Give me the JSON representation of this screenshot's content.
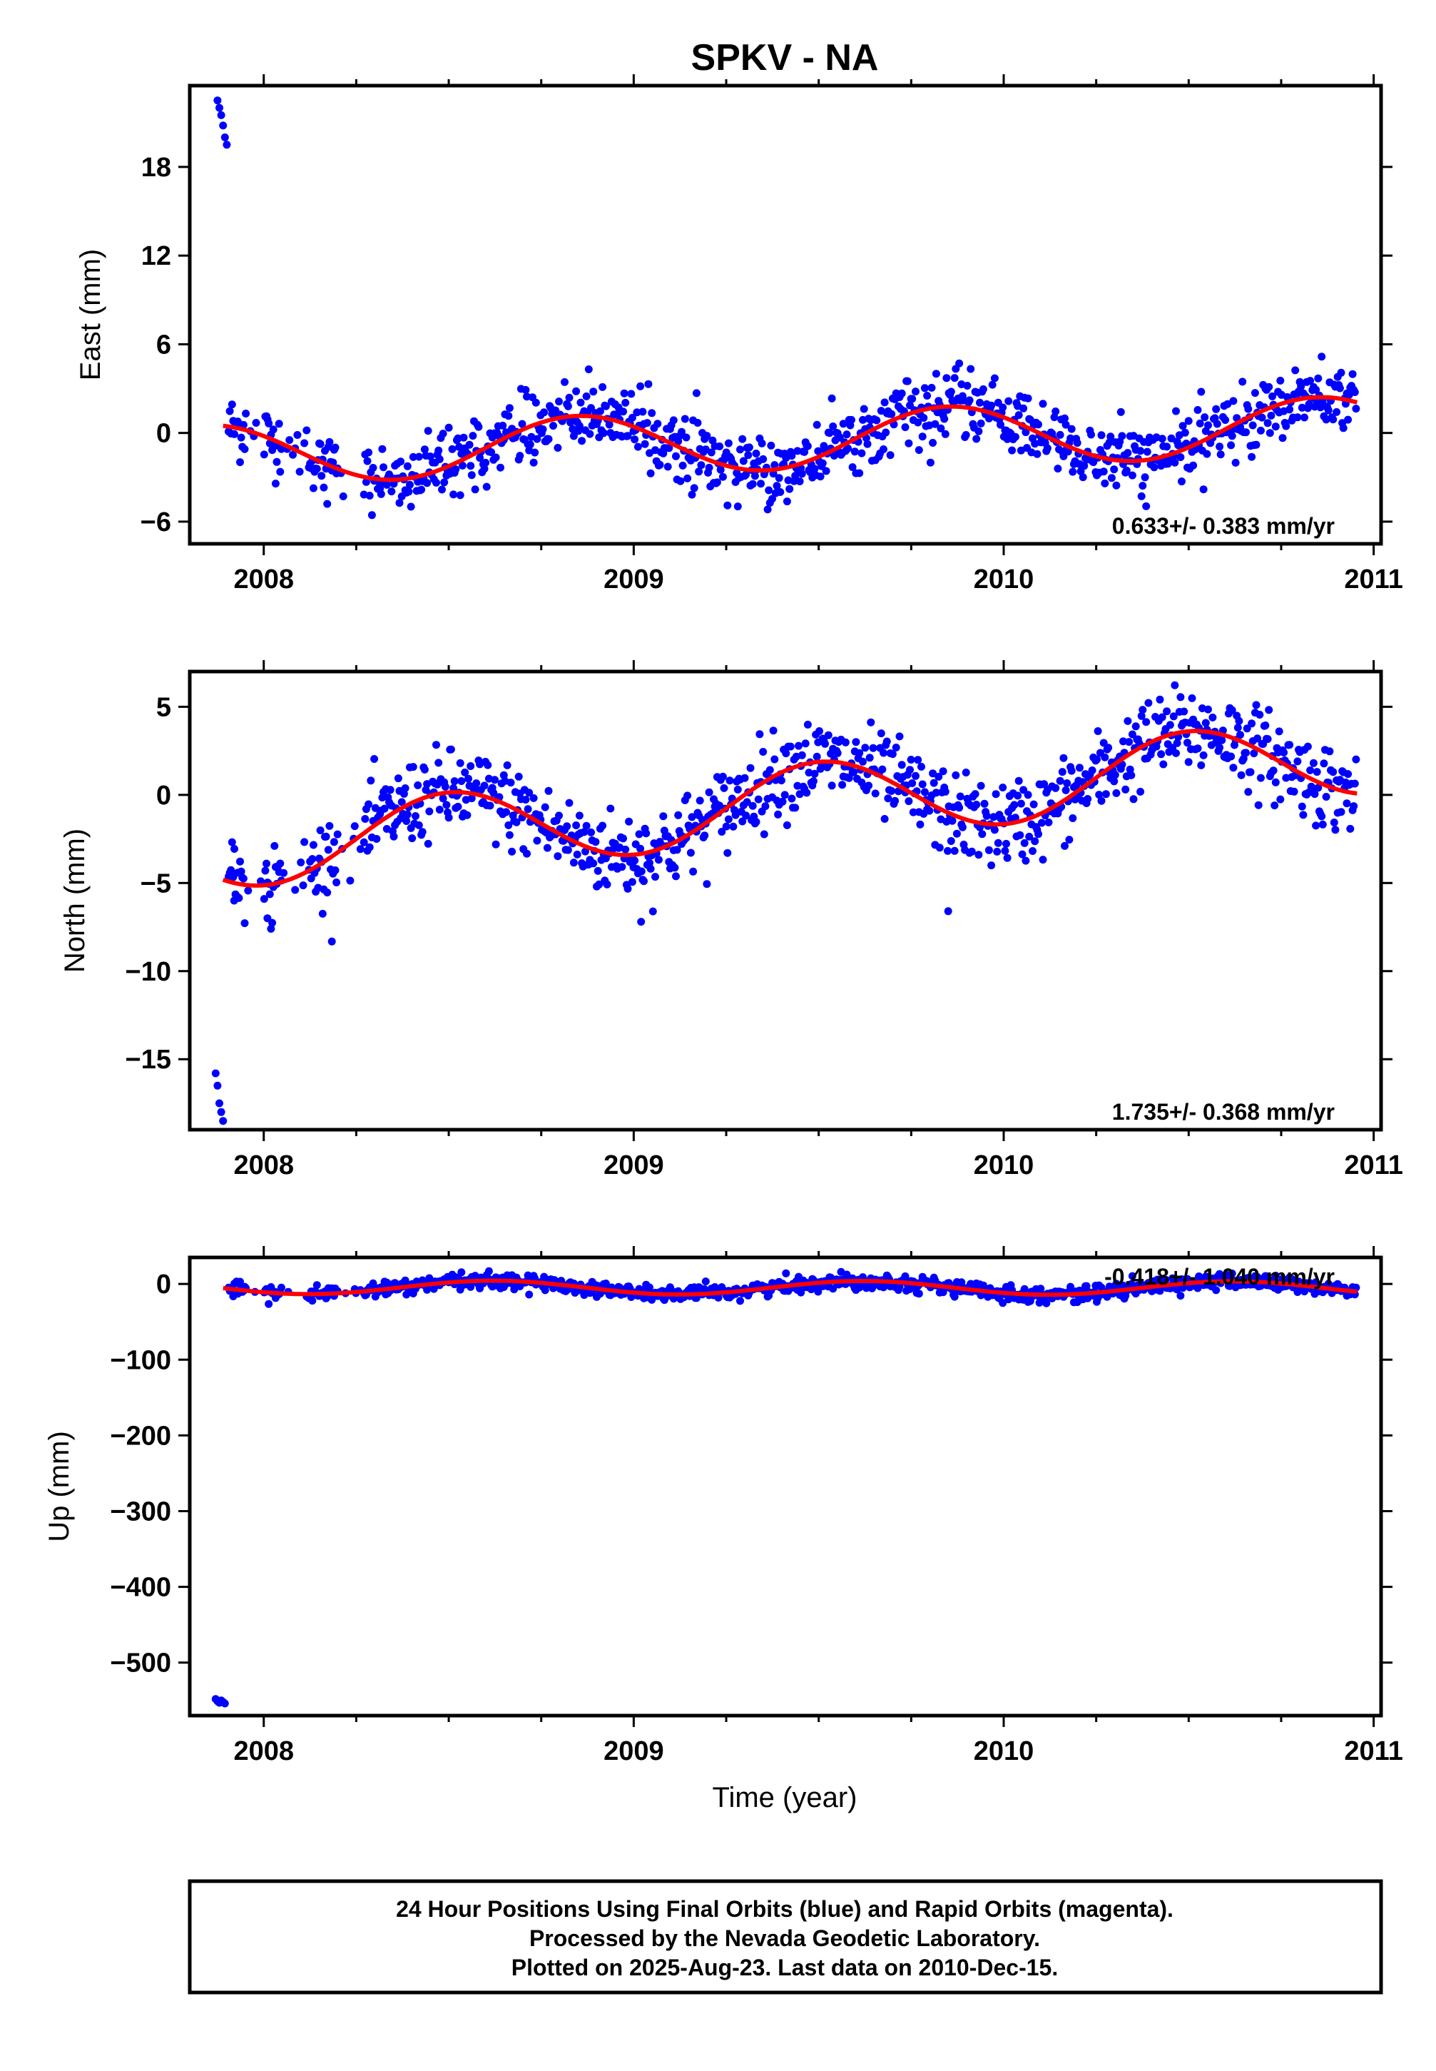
{
  "title": "SPKV - NA",
  "x_axis_label": "Time (year)",
  "footer": {
    "line1": "24 Hour Positions Using Final Orbits (blue) and Rapid Orbits (magenta).",
    "line2": "Processed by the Nevada Geodetic Laboratory.",
    "line3": "Plotted on 2025-Aug-23. Last data on 2010-Dec-15."
  },
  "colors": {
    "points": "#0000ff",
    "model": "#ff0000",
    "frame": "#000000"
  },
  "chart_data": [
    {
      "type": "scatter",
      "name": "east",
      "ylabel": "East (mm)",
      "xlim": [
        2007.8,
        2011.02
      ],
      "ylim": [
        -7.5,
        23.5
      ],
      "xticks": [
        2008,
        2009,
        2010,
        2011
      ],
      "xtick_labels": [
        "2008",
        "2009",
        "2010",
        "2011"
      ],
      "yticks": [
        -6,
        0,
        6,
        12,
        18
      ],
      "ytick_labels": [
        "−6",
        "0",
        "6",
        "12",
        "18"
      ],
      "rate_label": "0.633+/- 0.383 mm/yr",
      "outliers": [
        [
          2007.875,
          22.5
        ],
        [
          2007.88,
          22.0
        ],
        [
          2007.885,
          21.5
        ],
        [
          2007.89,
          20.8
        ],
        [
          2007.895,
          20.0
        ],
        [
          2007.9,
          19.5
        ]
      ],
      "model": {
        "offset": -0.5,
        "rate": 0.633,
        "amp": 2.0,
        "phase_peak": 0.85,
        "t0": 2009.4
      },
      "noise": 1.1
    },
    {
      "type": "scatter",
      "name": "north",
      "ylabel": "North (mm)",
      "xlim": [
        2007.8,
        2011.02
      ],
      "ylim": [
        -19.0,
        7.0
      ],
      "xticks": [
        2008,
        2009,
        2010,
        2011
      ],
      "xtick_labels": [
        "2008",
        "2009",
        "2010",
        "2011"
      ],
      "yticks": [
        -15,
        -10,
        -5,
        0,
        5
      ],
      "ytick_labels": [
        "−15",
        "−10",
        "−5",
        "0",
        "5"
      ],
      "rate_label": "1.735+/- 0.368 mm/yr",
      "outliers": [
        [
          2007.87,
          -15.8
        ],
        [
          2007.875,
          -16.5
        ],
        [
          2007.88,
          -17.5
        ],
        [
          2007.885,
          -18.0
        ],
        [
          2007.89,
          -18.5
        ],
        [
          2007.92,
          -6.0
        ],
        [
          2007.93,
          -5.8
        ],
        [
          2008.01,
          -7.0
        ],
        [
          2009.02,
          -7.2
        ],
        [
          2009.85,
          -6.6
        ]
      ],
      "model": {
        "offset": -0.5,
        "rate": 1.735,
        "amp": 2.2,
        "phase_peak": 0.5,
        "t0": 2009.4
      },
      "noise": 1.2
    },
    {
      "type": "scatter",
      "name": "up",
      "ylabel": "Up (mm)",
      "xlim": [
        2007.8,
        2011.02
      ],
      "ylim": [
        -570,
        35
      ],
      "xticks": [
        2008,
        2009,
        2010,
        2011
      ],
      "xtick_labels": [
        "2008",
        "2009",
        "2010",
        "2011"
      ],
      "yticks": [
        -500,
        -400,
        -300,
        -200,
        -100,
        0
      ],
      "ytick_labels": [
        "−500",
        "−400",
        "−300",
        "−200",
        "−100",
        "0"
      ],
      "rate_label": "-0.418+/- 1.040 mm/yr",
      "outliers": [
        [
          2007.87,
          -548
        ],
        [
          2007.875,
          -551
        ],
        [
          2007.88,
          -553
        ],
        [
          2007.885,
          -550
        ],
        [
          2007.89,
          -552
        ],
        [
          2007.895,
          -554
        ]
      ],
      "model": {
        "offset": -5,
        "rate": -0.418,
        "amp": 9.0,
        "phase_peak": 0.62,
        "t0": 2009.4
      },
      "noise": 5.0
    }
  ]
}
